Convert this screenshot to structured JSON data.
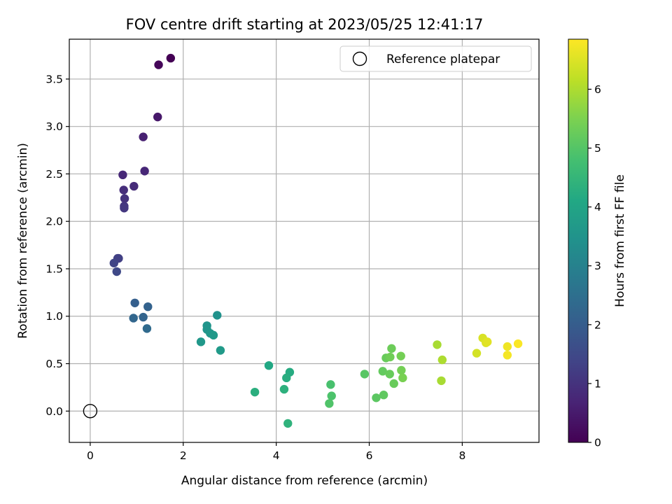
{
  "chart_data": {
    "type": "scatter",
    "title": "FOV centre drift starting at 2023/05/25 12:41:17",
    "xlabel": "Angular distance from reference (arcmin)",
    "ylabel": "Rotation from reference (arcmin)",
    "xlim": [
      -0.45,
      9.65
    ],
    "ylim": [
      -0.33,
      3.92
    ],
    "x_ticks": [
      0,
      2,
      4,
      6,
      8
    ],
    "x_tick_labels": [
      "0",
      "2",
      "4",
      "6",
      "8"
    ],
    "y_ticks": [
      0.0,
      0.5,
      1.0,
      1.5,
      2.0,
      2.5,
      3.0,
      3.5
    ],
    "y_tick_labels": [
      "0.0",
      "0.5",
      "1.0",
      "1.5",
      "2.0",
      "2.5",
      "3.0",
      "3.5"
    ],
    "grid": true,
    "colormap": "viridis",
    "colorbar": {
      "label": "Hours from first FF file",
      "range": [
        0,
        6.85
      ],
      "ticks": [
        0,
        1,
        2,
        3,
        4,
        5,
        6
      ],
      "tick_labels": [
        "0",
        "1",
        "2",
        "3",
        "4",
        "5",
        "6"
      ]
    },
    "legend": {
      "position": "top-right",
      "entries": [
        "Reference platepar"
      ]
    },
    "reference_point": {
      "x": 0,
      "y": 0,
      "marker": "open-circle"
    },
    "series": [
      {
        "points": [
          {
            "x": 1.73,
            "y": 3.72,
            "hours": 0.0
          },
          {
            "x": 1.47,
            "y": 3.65,
            "hours": 0.1
          },
          {
            "x": 1.45,
            "y": 3.1,
            "hours": 0.45
          },
          {
            "x": 1.14,
            "y": 2.89,
            "hours": 0.62
          },
          {
            "x": 1.17,
            "y": 2.53,
            "hours": 0.75
          },
          {
            "x": 0.7,
            "y": 2.49,
            "hours": 0.78
          },
          {
            "x": 0.94,
            "y": 2.37,
            "hours": 0.85
          },
          {
            "x": 0.72,
            "y": 2.33,
            "hours": 0.9
          },
          {
            "x": 0.74,
            "y": 2.24,
            "hours": 0.98
          },
          {
            "x": 0.73,
            "y": 2.16,
            "hours": 1.05
          },
          {
            "x": 0.73,
            "y": 2.14,
            "hours": 1.1
          },
          {
            "x": 0.61,
            "y": 1.61,
            "hours": 1.25
          },
          {
            "x": 0.59,
            "y": 1.61,
            "hours": 1.3
          },
          {
            "x": 0.51,
            "y": 1.56,
            "hours": 1.4
          },
          {
            "x": 0.57,
            "y": 1.47,
            "hours": 1.5
          },
          {
            "x": 0.96,
            "y": 1.14,
            "hours": 2.05
          },
          {
            "x": 1.24,
            "y": 1.1,
            "hours": 2.15
          },
          {
            "x": 1.14,
            "y": 0.99,
            "hours": 2.2
          },
          {
            "x": 0.93,
            "y": 0.98,
            "hours": 2.25
          },
          {
            "x": 1.22,
            "y": 0.87,
            "hours": 2.35
          },
          {
            "x": 2.73,
            "y": 1.01,
            "hours": 3.45
          },
          {
            "x": 2.51,
            "y": 0.9,
            "hours": 3.5
          },
          {
            "x": 2.51,
            "y": 0.86,
            "hours": 3.55
          },
          {
            "x": 2.58,
            "y": 0.82,
            "hours": 3.6
          },
          {
            "x": 2.65,
            "y": 0.8,
            "hours": 3.65
          },
          {
            "x": 2.38,
            "y": 0.73,
            "hours": 3.62
          },
          {
            "x": 2.8,
            "y": 0.64,
            "hours": 3.7
          },
          {
            "x": 3.84,
            "y": 0.48,
            "hours": 4.1
          },
          {
            "x": 4.29,
            "y": 0.41,
            "hours": 4.2
          },
          {
            "x": 4.22,
            "y": 0.35,
            "hours": 4.25
          },
          {
            "x": 4.17,
            "y": 0.23,
            "hours": 4.35
          },
          {
            "x": 3.54,
            "y": 0.2,
            "hours": 4.3
          },
          {
            "x": 4.25,
            "y": -0.13,
            "hours": 4.4
          },
          {
            "x": 5.17,
            "y": 0.28,
            "hours": 4.85
          },
          {
            "x": 5.19,
            "y": 0.16,
            "hours": 4.9
          },
          {
            "x": 5.14,
            "y": 0.08,
            "hours": 4.95
          },
          {
            "x": 5.9,
            "y": 0.39,
            "hours": 5.05
          },
          {
            "x": 6.15,
            "y": 0.14,
            "hours": 5.1
          },
          {
            "x": 6.31,
            "y": 0.17,
            "hours": 5.15
          },
          {
            "x": 6.29,
            "y": 0.42,
            "hours": 5.2
          },
          {
            "x": 6.36,
            "y": 0.56,
            "hours": 5.25
          },
          {
            "x": 6.44,
            "y": 0.39,
            "hours": 5.25
          },
          {
            "x": 6.48,
            "y": 0.66,
            "hours": 5.3
          },
          {
            "x": 6.53,
            "y": 0.29,
            "hours": 5.25
          },
          {
            "x": 6.45,
            "y": 0.57,
            "hours": 5.35
          },
          {
            "x": 6.68,
            "y": 0.58,
            "hours": 5.4
          },
          {
            "x": 6.69,
            "y": 0.43,
            "hours": 5.4
          },
          {
            "x": 6.72,
            "y": 0.35,
            "hours": 5.45
          },
          {
            "x": 7.46,
            "y": 0.7,
            "hours": 5.95
          },
          {
            "x": 7.57,
            "y": 0.54,
            "hours": 6.0
          },
          {
            "x": 7.55,
            "y": 0.32,
            "hours": 5.95
          },
          {
            "x": 8.31,
            "y": 0.61,
            "hours": 6.4
          },
          {
            "x": 8.44,
            "y": 0.77,
            "hours": 6.45
          },
          {
            "x": 8.51,
            "y": 0.72,
            "hours": 6.5
          },
          {
            "x": 8.54,
            "y": 0.73,
            "hours": 6.55
          },
          {
            "x": 8.97,
            "y": 0.68,
            "hours": 6.7
          },
          {
            "x": 8.97,
            "y": 0.59,
            "hours": 6.75
          },
          {
            "x": 9.2,
            "y": 0.71,
            "hours": 6.82
          }
        ]
      }
    ]
  }
}
